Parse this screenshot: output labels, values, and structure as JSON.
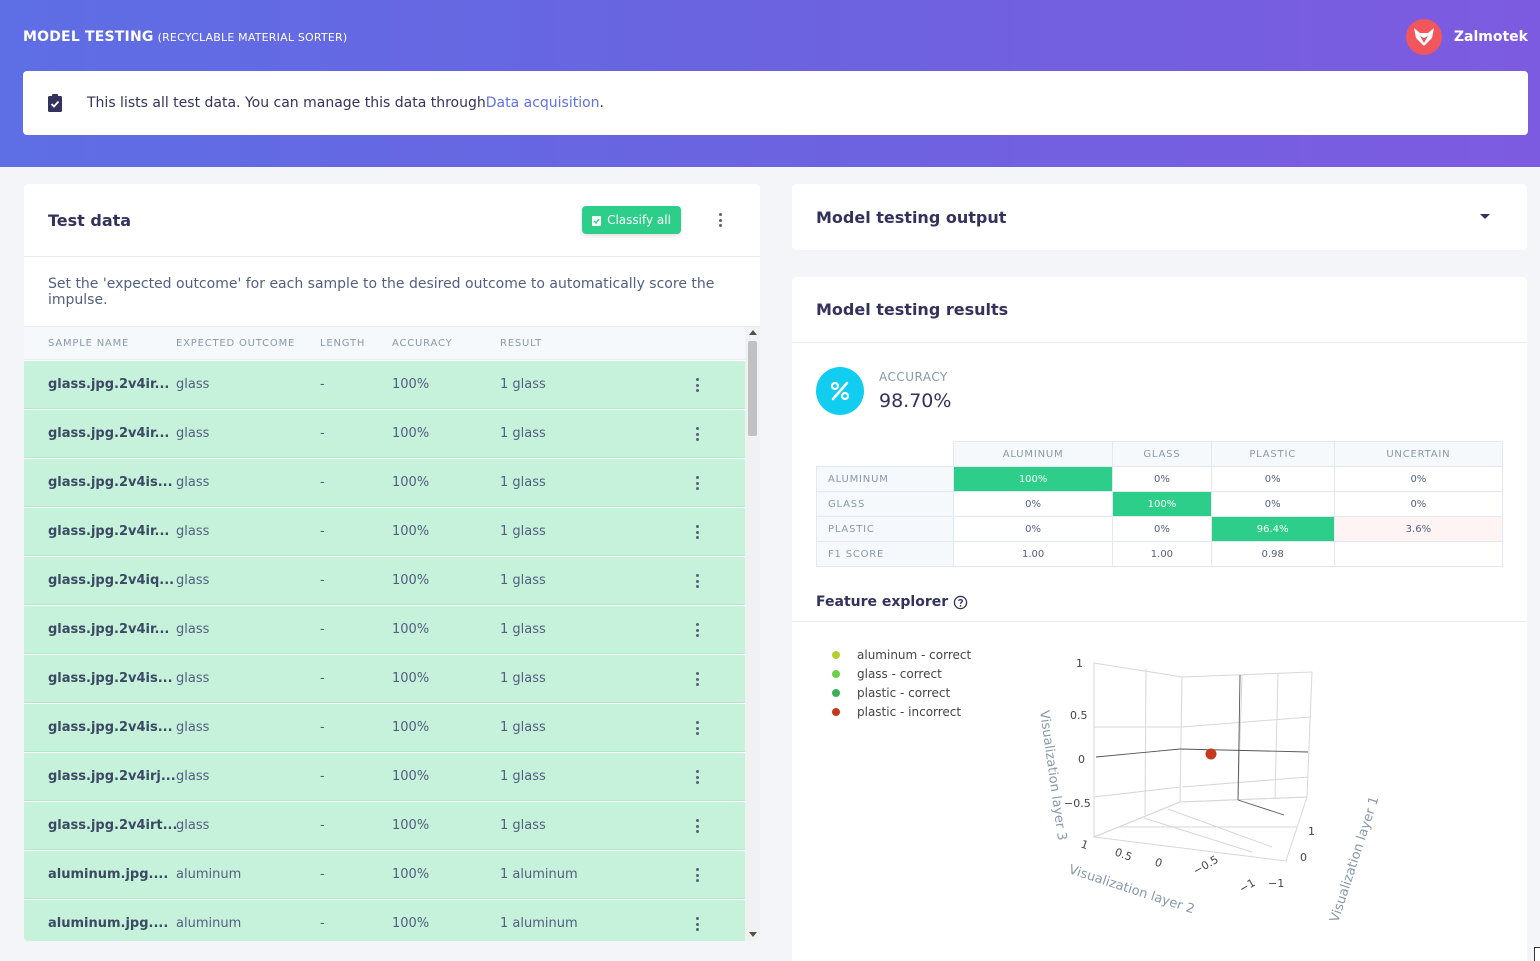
{
  "header": {
    "title": "MODEL TESTING",
    "subtitle": "(RECYCLABLE MATERIAL SORTER)",
    "user_name": "Zalmotek"
  },
  "info": {
    "text": "This lists all test data. You can manage this data through ",
    "link": "Data acquisition",
    "suffix": "."
  },
  "test_data": {
    "title": "Test data",
    "classify_label": "Classify all",
    "description": "Set the 'expected outcome' for each sample to the desired outcome to automatically score the impulse.",
    "columns": [
      "SAMPLE NAME",
      "EXPECTED OUTCOME",
      "LENGTH",
      "ACCURACY",
      "RESULT"
    ],
    "rows": [
      {
        "name": "glass.jpg.2v4ir...",
        "expected": "glass",
        "length": "-",
        "accuracy": "100%",
        "result": "1 glass"
      },
      {
        "name": "glass.jpg.2v4ir...",
        "expected": "glass",
        "length": "-",
        "accuracy": "100%",
        "result": "1 glass"
      },
      {
        "name": "glass.jpg.2v4is...",
        "expected": "glass",
        "length": "-",
        "accuracy": "100%",
        "result": "1 glass"
      },
      {
        "name": "glass.jpg.2v4ir...",
        "expected": "glass",
        "length": "-",
        "accuracy": "100%",
        "result": "1 glass"
      },
      {
        "name": "glass.jpg.2v4iq...",
        "expected": "glass",
        "length": "-",
        "accuracy": "100%",
        "result": "1 glass"
      },
      {
        "name": "glass.jpg.2v4ir...",
        "expected": "glass",
        "length": "-",
        "accuracy": "100%",
        "result": "1 glass"
      },
      {
        "name": "glass.jpg.2v4is...",
        "expected": "glass",
        "length": "-",
        "accuracy": "100%",
        "result": "1 glass"
      },
      {
        "name": "glass.jpg.2v4is...",
        "expected": "glass",
        "length": "-",
        "accuracy": "100%",
        "result": "1 glass"
      },
      {
        "name": "glass.jpg.2v4irj...",
        "expected": "glass",
        "length": "-",
        "accuracy": "100%",
        "result": "1 glass"
      },
      {
        "name": "glass.jpg.2v4irt...",
        "expected": "glass",
        "length": "-",
        "accuracy": "100%",
        "result": "1 glass"
      },
      {
        "name": "aluminum.jpg....",
        "expected": "aluminum",
        "length": "-",
        "accuracy": "100%",
        "result": "1 aluminum"
      },
      {
        "name": "aluminum.jpg....",
        "expected": "aluminum",
        "length": "-",
        "accuracy": "100%",
        "result": "1 aluminum"
      }
    ]
  },
  "output": {
    "title": "Model testing output"
  },
  "results": {
    "title": "Model testing results",
    "accuracy_label": "ACCURACY",
    "accuracy_value": "98.70%",
    "matrix": {
      "columns": [
        "ALUMINUM",
        "GLASS",
        "PLASTIC",
        "UNCERTAIN"
      ],
      "rows": [
        {
          "label": "ALUMINUM",
          "cells": [
            "100%",
            "0%",
            "0%",
            "0%"
          ]
        },
        {
          "label": "GLASS",
          "cells": [
            "0%",
            "100%",
            "0%",
            "0%"
          ]
        },
        {
          "label": "PLASTIC",
          "cells": [
            "0%",
            "0%",
            "96.4%",
            "3.6%"
          ]
        },
        {
          "label": "F1 SCORE",
          "cells": [
            "1.00",
            "1.00",
            "0.98",
            ""
          ]
        }
      ]
    },
    "feature_explorer": {
      "title": "Feature explorer",
      "legend": [
        {
          "label": "aluminum - correct",
          "color": "#b5cf30"
        },
        {
          "label": "glass - correct",
          "color": "#6ccf47"
        },
        {
          "label": "plastic - correct",
          "color": "#3aaf55"
        },
        {
          "label": "plastic - incorrect",
          "color": "#c43a1e"
        }
      ],
      "axes": {
        "z_label": "Visualization layer 3",
        "x_label": "Visualization layer 2",
        "y_label": "Visualization layer 1",
        "z_ticks": [
          "1",
          "0.5",
          "0",
          "−0.5"
        ],
        "x_ticks": [
          "1",
          "0.5",
          "0",
          "−0.5",
          "−1"
        ],
        "y_ticks": [
          "1",
          "0",
          "−1"
        ]
      }
    }
  },
  "colors": {
    "accent_green": "#2dce89",
    "row_correct": "#c6f1da",
    "info_cyan": "#11cdef"
  }
}
